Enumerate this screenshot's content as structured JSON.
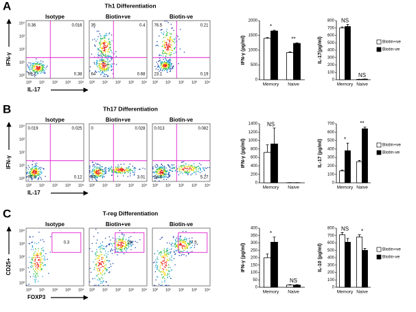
{
  "panels": [
    {
      "letter": "A",
      "title": "Th1 Differentiation",
      "flow": {
        "y_label": "IFN-γ",
        "x_label": "IL-17",
        "ticks": [
          "10⁰",
          "10¹",
          "10²",
          "10³",
          "10⁴"
        ],
        "plots": [
          {
            "name": "Isotype",
            "quadrants": [
              0.36,
              0.016,
              99.2,
              0.38
            ]
          },
          {
            "name": "Biotin+ve",
            "quadrants": [
              35,
              0.4,
              64,
              0.68
            ]
          },
          {
            "name": "Biotin-ve",
            "quadrants": [
              76.5,
              0.21,
              23.1,
              0.19
            ]
          }
        ]
      }
    },
    {
      "letter": "B",
      "title": "Th17 Differentiation",
      "flow": {
        "y_label": "IFN-γ",
        "x_label": "IL-17",
        "ticks": [
          "10⁰",
          "10¹",
          "10²",
          "10³",
          "10⁴"
        ],
        "plots": [
          {
            "name": "Isotype",
            "quadrants": [
              0.019,
              0.025,
              99.8,
              0.12
            ]
          },
          {
            "name": "Biotin+ve",
            "quadrants": [
              0,
              0.028,
              97,
              3.01
            ]
          },
          {
            "name": "Biotin-ve",
            "quadrants": [
              0.013,
              0.082,
              94.6,
              5.27
            ]
          }
        ]
      }
    },
    {
      "letter": "C",
      "title": "T-reg Differentiation",
      "flow": {
        "y_label": "CD25+",
        "x_label": "FOXP3",
        "ticks": [
          "10⁰",
          "10¹",
          "10²",
          "10³",
          "10⁴"
        ],
        "plots": [
          {
            "name": "Isotype",
            "gate": 0.3
          },
          {
            "name": "Biotin+ve",
            "gate": 28
          },
          {
            "name": "Biotin-ve",
            "gate": 17.5
          }
        ]
      }
    }
  ],
  "chart_data": [
    {
      "type": "bar",
      "y_label": "IFN-γ (pg/ml)",
      "categories": [
        "Memory",
        "Naive"
      ],
      "ylim": [
        0,
        2000
      ],
      "yticks": [
        0,
        500,
        1000,
        1500,
        2000
      ],
      "series": [
        {
          "name": "Biotin+ve",
          "color": "#ffffff",
          "values": [
            1400,
            920
          ],
          "errors": [
            30,
            20
          ]
        },
        {
          "name": "Biotin-ve",
          "color": "#000000",
          "values": [
            1650,
            1230
          ],
          "errors": [
            25,
            20
          ]
        }
      ],
      "annotations": [
        "*",
        "**"
      ],
      "legend": false
    },
    {
      "type": "bar",
      "y_label": "IL-17(pg/ml)",
      "categories": [
        "Memory",
        "Naive"
      ],
      "ylim": [
        0,
        800
      ],
      "yticks": [
        0,
        100,
        200,
        300,
        400,
        500,
        600,
        700,
        800
      ],
      "series": [
        {
          "name": "Biotin+ve",
          "color": "#ffffff",
          "values": [
            700,
            5
          ],
          "errors": [
            15,
            2
          ]
        },
        {
          "name": "Biotin-ve",
          "color": "#000000",
          "values": [
            720,
            8
          ],
          "errors": [
            30,
            2
          ]
        }
      ],
      "annotations": [
        "NS",
        "NS"
      ],
      "legend": true
    },
    {
      "type": "bar",
      "y_label": "IFN-γ (pg/ml)",
      "categories": [
        "Memory",
        "Naive"
      ],
      "ylim": [
        0,
        1400
      ],
      "yticks": [
        0,
        200,
        400,
        600,
        800,
        1000,
        1200,
        1400
      ],
      "series": [
        {
          "name": "Biotin+ve",
          "color": "#ffffff",
          "values": [
            720,
            3
          ],
          "errors": [
            180,
            2
          ]
        },
        {
          "name": "Biotin-ve",
          "color": "#000000",
          "values": [
            920,
            3
          ],
          "errors": [
            380,
            2
          ]
        }
      ],
      "annotations": [
        "NS",
        null
      ],
      "legend": false
    },
    {
      "type": "bar",
      "y_label": "IL-17 (pg/ml)",
      "categories": [
        "Memory",
        "Naive"
      ],
      "ylim": [
        0,
        700
      ],
      "yticks": [
        0,
        100,
        200,
        300,
        400,
        500,
        600,
        700
      ],
      "series": [
        {
          "name": "Biotin+ve",
          "color": "#ffffff",
          "values": [
            140,
            250
          ],
          "errors": [
            10,
            15
          ]
        },
        {
          "name": "Biotin-ve",
          "color": "#000000",
          "values": [
            380,
            640
          ],
          "errors": [
            90,
            20
          ]
        }
      ],
      "annotations": [
        "*",
        "**"
      ],
      "legend": true
    },
    {
      "type": "bar",
      "y_label": "IFN-γ (pg/ml)",
      "categories": [
        "Memory",
        "Naive"
      ],
      "ylim": [
        0,
        400
      ],
      "yticks": [
        0,
        50,
        100,
        150,
        200,
        250,
        300,
        350,
        400
      ],
      "series": [
        {
          "name": "Biotin+ve",
          "color": "#ffffff",
          "values": [
            200,
            15
          ],
          "errors": [
            25,
            3
          ]
        },
        {
          "name": "Biotin-ve",
          "color": "#000000",
          "values": [
            305,
            15
          ],
          "errors": [
            35,
            3
          ]
        }
      ],
      "annotations": [
        "*",
        "NS"
      ],
      "legend": false
    },
    {
      "type": "bar",
      "y_label": "IL-10 (pg/ml)",
      "categories": [
        "Memory",
        "Naive"
      ],
      "ylim": [
        0,
        800
      ],
      "yticks": [
        0,
        100,
        200,
        300,
        400,
        500,
        600,
        700,
        800
      ],
      "series": [
        {
          "name": "Biotin+ve",
          "color": "#ffffff",
          "values": [
            710,
            680
          ],
          "errors": [
            30,
            30
          ]
        },
        {
          "name": "Biotin-ve",
          "color": "#000000",
          "values": [
            610,
            500
          ],
          "errors": [
            50,
            25
          ]
        }
      ],
      "annotations": [
        "NS",
        "*"
      ],
      "legend": true
    }
  ]
}
